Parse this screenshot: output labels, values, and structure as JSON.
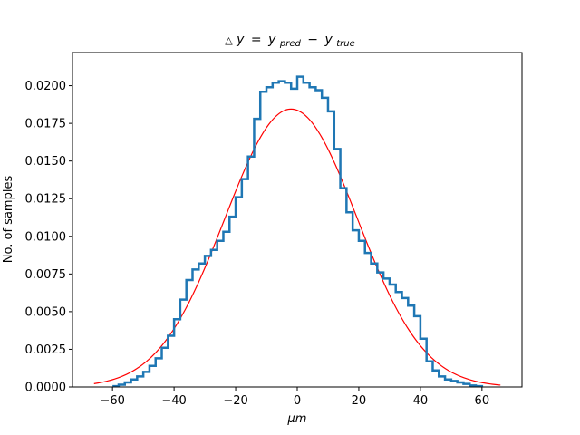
{
  "chart_data": {
    "type": "line",
    "title": "Δy = y_pred − y_true",
    "title_parts": {
      "delta": "△",
      "y": "y",
      "eq": "=",
      "pred_var": "y",
      "pred_sub": "pred",
      "minus": "−",
      "true_var": "y",
      "true_sub": "true"
    },
    "xlabel": "μm",
    "ylabel": "No. of samples",
    "xlim": [
      -73,
      73
    ],
    "ylim": [
      0,
      0.0222
    ],
    "xticks": [
      -60,
      -40,
      -20,
      0,
      20,
      40,
      60
    ],
    "xtick_labels": [
      "−60",
      "−40",
      "−20",
      "0",
      "20",
      "40",
      "60"
    ],
    "yticks": [
      0,
      0.0025,
      0.005,
      0.0075,
      0.01,
      0.0125,
      0.015,
      0.0175,
      0.02
    ],
    "ytick_labels": [
      "0.0000",
      "0.0025",
      "0.0050",
      "0.0075",
      "0.0100",
      "0.0125",
      "0.0150",
      "0.0175",
      "0.0200"
    ],
    "grid": false,
    "legend": "none",
    "series": [
      {
        "style": "step-histogram",
        "color": "#1f77b4",
        "x": [
          -60,
          -58,
          -56,
          -54,
          -52,
          -50,
          -48,
          -46,
          -44,
          -42,
          -40,
          -38,
          -36,
          -34,
          -32,
          -30,
          -28,
          -26,
          -24,
          -22,
          -20,
          -18,
          -16,
          -14,
          -12,
          -10,
          -8,
          -6,
          -4,
          -2,
          0,
          2,
          4,
          6,
          8,
          10,
          12,
          14,
          16,
          18,
          20,
          22,
          24,
          26,
          28,
          30,
          32,
          34,
          36,
          38,
          40,
          42,
          44,
          46,
          48,
          50,
          52,
          54,
          56,
          58,
          60
        ],
        "y": [
          5e-05,
          0.00015,
          0.0003,
          0.0005,
          0.0007,
          0.001,
          0.0014,
          0.0019,
          0.0026,
          0.0034,
          0.0045,
          0.0058,
          0.0071,
          0.0078,
          0.0082,
          0.0087,
          0.0091,
          0.0097,
          0.0103,
          0.0113,
          0.0126,
          0.0138,
          0.0153,
          0.0178,
          0.0196,
          0.0199,
          0.0202,
          0.0203,
          0.0202,
          0.0198,
          0.0206,
          0.0202,
          0.0199,
          0.0197,
          0.0192,
          0.0183,
          0.0158,
          0.0132,
          0.0116,
          0.0104,
          0.0097,
          0.0089,
          0.0082,
          0.0076,
          0.0072,
          0.0068,
          0.0063,
          0.0059,
          0.0054,
          0.0047,
          0.0032,
          0.0017,
          0.0011,
          0.0007,
          0.0005,
          0.0004,
          0.0003,
          0.0002,
          0.0001,
          5e-05,
          0.0
        ]
      },
      {
        "style": "gaussian-fit-line",
        "color": "#ff0000",
        "mean": -2,
        "sigma": 21.5,
        "peak": 0.01845,
        "x_range": [
          -66,
          66
        ]
      }
    ]
  }
}
